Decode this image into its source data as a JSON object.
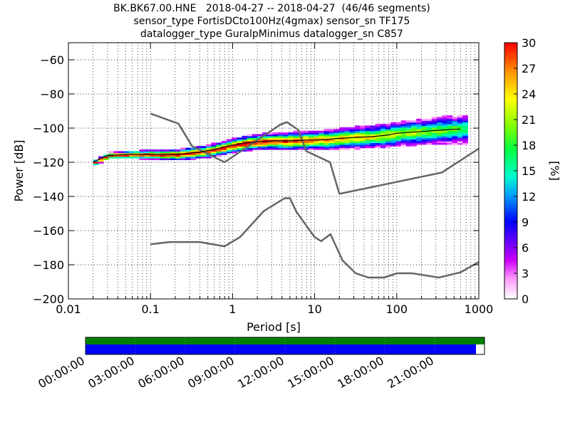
{
  "title_lines": [
    "BK.BK67.00.HNE   2018-04-27 -- 2018-04-27  (46/46 segments)",
    "sensor_type FortisDCto100Hz(4gmax) sensor_sn TF175",
    "datalogger_type GuralpMinimus datalogger_sn C857"
  ],
  "chart_data": {
    "type": "heatmap",
    "xlabel": "Period [s]",
    "ylabel": "Power [dB]",
    "xscale": "log",
    "xlim": [
      0.01,
      1000
    ],
    "ylim": [
      -200,
      -50
    ],
    "x_ticks": [
      0.01,
      0.1,
      1,
      10,
      100,
      1000
    ],
    "x_tick_labels": [
      "0.01",
      "0.1",
      "1",
      "10",
      "100",
      "1000"
    ],
    "y_ticks": [
      -200,
      -180,
      -160,
      -140,
      -120,
      -100,
      -80,
      -60
    ],
    "y_tick_labels": [
      "−200",
      "−180",
      "−160",
      "−140",
      "−120",
      "−100",
      "−80",
      "−60"
    ],
    "grid": true,
    "colorbar": {
      "label": "[%]",
      "min": 0,
      "max": 30,
      "ticks": [
        0,
        3,
        6,
        9,
        12,
        15,
        18,
        21,
        24,
        27,
        30
      ],
      "colormap": [
        "#ffffff",
        "#cc00ff",
        "#0000ff",
        "#00ccff",
        "#00ff66",
        "#ffff00",
        "#ff8800",
        "#ff0000"
      ]
    },
    "nhnm": {
      "name": "NHNM",
      "x": [
        0.1,
        0.22,
        0.32,
        0.8,
        3.8,
        4.6,
        6.3,
        7.9,
        15.4,
        20,
        354.8,
        1000
      ],
      "y": [
        -91.5,
        -97.4,
        -110.5,
        -120,
        -98,
        -96.5,
        -101,
        -113.5,
        -120,
        -138.5,
        -126,
        -112
      ]
    },
    "nlnm": {
      "name": "NLNM",
      "x": [
        0.1,
        0.17,
        0.4,
        0.8,
        1.24,
        2.4,
        4.3,
        5,
        6,
        10,
        12,
        15.6,
        21.9,
        31.6,
        45,
        70,
        101,
        154,
        328,
        600,
        1000
      ],
      "y": [
        -168,
        -166.7,
        -166.7,
        -169.2,
        -163.7,
        -148.6,
        -141.1,
        -141.1,
        -149,
        -163.8,
        -166.2,
        -162.1,
        -177.5,
        -185,
        -187.5,
        -187.5,
        -185,
        -185,
        -187.5,
        -184.4,
        -178.4
      ]
    },
    "mode": {
      "name": "mode",
      "x": [
        0.02,
        0.024,
        0.03,
        0.05,
        0.1,
        0.2,
        0.4,
        0.6,
        0.8,
        1,
        1.5,
        2,
        3,
        5,
        8,
        10,
        15,
        20,
        30,
        50,
        80,
        100,
        200,
        400,
        600
      ],
      "y": [
        -120,
        -118,
        -116,
        -115.5,
        -115.5,
        -115.5,
        -114,
        -112.5,
        -111,
        -110,
        -108.5,
        -108,
        -107.5,
        -107.5,
        -107,
        -107,
        -106.5,
        -106,
        -105.5,
        -105,
        -104,
        -103,
        -102,
        -101,
        -100.5
      ]
    },
    "color_scale_values_hint": "percent occurrence",
    "timeline": {
      "ticks": [
        "00:00:00",
        "03:00:00",
        "06:00:00",
        "09:00:00",
        "12:00:00",
        "15:00:00",
        "18:00:00",
        "21:00:00"
      ],
      "coverage_fraction": 0.9786,
      "top_bar_color": "#008000",
      "bottom_bar_color": "#0000ff"
    }
  }
}
